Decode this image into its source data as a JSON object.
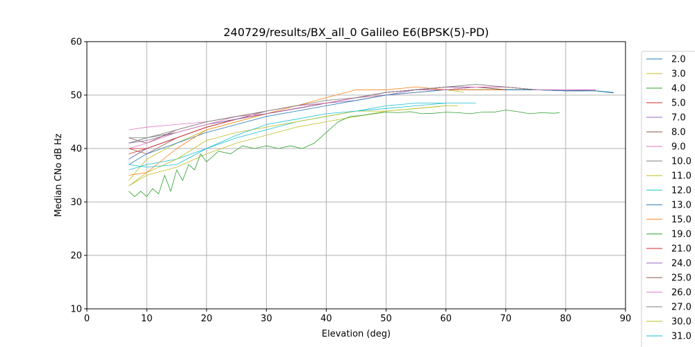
{
  "chart_data": {
    "type": "line",
    "title": "240729/results/BX_all_0 Galileo E6(BPSK(5)-PD)",
    "xlabel": "Elevation (deg)",
    "ylabel": "Median CNo dB Hz",
    "xlim": [
      0,
      90
    ],
    "ylim": [
      10,
      60
    ],
    "xticks": [
      "0",
      "10",
      "20",
      "30",
      "40",
      "50",
      "60",
      "70",
      "80",
      "90"
    ],
    "yticks": [
      "10",
      "20",
      "30",
      "40",
      "50",
      "60"
    ],
    "grid": true,
    "legend_placement": "right",
    "series": [
      {
        "name": "2.0",
        "color": "#1f77b4",
        "x": [
          7,
          10,
          15,
          20,
          25,
          30,
          35,
          40,
          45,
          50,
          55,
          60,
          65,
          70,
          75,
          80,
          85,
          88
        ],
        "y": [
          38,
          40,
          42,
          44,
          45.5,
          46.5,
          47.5,
          48.5,
          49.5,
          50.5,
          51,
          51.5,
          51.5,
          51.5,
          51,
          50.8,
          50.8,
          50.5
        ]
      },
      {
        "name": "3.0",
        "color": "#bcbd22",
        "x": [
          7,
          10,
          15,
          20,
          25,
          30,
          35,
          40,
          45,
          50,
          55,
          60,
          63
        ],
        "y": [
          34,
          38,
          41,
          43.5,
          45,
          46.5,
          47.5,
          48.5,
          49.5,
          50,
          50.5,
          51,
          50.5
        ]
      },
      {
        "name": "4.0",
        "color": "#2ca02c",
        "x": [
          7,
          10,
          15,
          20,
          25,
          30,
          35,
          40,
          45,
          50,
          55,
          60,
          65,
          70,
          75,
          80,
          85,
          88
        ],
        "y": [
          41,
          42,
          43,
          44.5,
          45.5,
          46.5,
          47.5,
          48.5,
          49.5,
          50.5,
          51,
          51,
          51,
          51,
          51,
          50.8,
          50.8,
          50.4
        ]
      },
      {
        "name": "5.0",
        "color": "#d62728",
        "x": [
          7,
          10,
          15,
          20,
          25,
          30,
          35,
          40,
          45,
          50,
          55,
          60,
          65,
          70,
          75
        ],
        "y": [
          39,
          40,
          42,
          44,
          45.5,
          46.5,
          47.5,
          48.5,
          49.5,
          50.5,
          51,
          51.5,
          51.5,
          51.5,
          51
        ]
      },
      {
        "name": "7.0",
        "color": "#9467bd",
        "x": [
          7,
          10,
          15,
          20,
          25,
          30,
          35,
          40,
          45,
          50,
          55,
          60,
          65,
          70,
          75,
          80,
          85
        ],
        "y": [
          38,
          40,
          42,
          44,
          45.5,
          46.5,
          47.5,
          48.5,
          49,
          50,
          51,
          51.5,
          51.5,
          51.5,
          51,
          50.8,
          51
        ]
      },
      {
        "name": "8.0",
        "color": "#8c564b",
        "x": [
          7,
          10,
          15,
          20,
          25,
          30,
          35,
          40,
          45,
          50,
          55,
          60,
          65,
          70,
          75
        ],
        "y": [
          40,
          39,
          42,
          44,
          45.5,
          47,
          48,
          48.5,
          49.5,
          50.5,
          51,
          51,
          51.5,
          51,
          51
        ]
      },
      {
        "name": "9.0",
        "color": "#e377c2",
        "x": [
          7,
          10,
          15,
          20,
          25,
          30,
          35,
          40,
          45,
          50,
          55,
          60,
          65,
          70,
          75,
          80,
          85
        ],
        "y": [
          43.5,
          44,
          44.5,
          45,
          46,
          46.5,
          47.5,
          48.5,
          49.5,
          50,
          50.5,
          51,
          51.5,
          51.5,
          51,
          51,
          51
        ]
      },
      {
        "name": "10.0",
        "color": "#7f7f7f",
        "x": [
          7,
          10,
          15,
          20,
          25,
          30,
          35,
          40,
          45,
          50,
          55,
          60,
          65,
          70,
          75
        ],
        "y": [
          42,
          42,
          43,
          44.5,
          45.5,
          46.5,
          47.5,
          48.5,
          49.5,
          50.5,
          51,
          51.5,
          52,
          51.5,
          51
        ]
      },
      {
        "name": "11.0",
        "color": "#bcbd22",
        "x": [
          7,
          10,
          15,
          20,
          25,
          30,
          35,
          40,
          45,
          50,
          55,
          60
        ],
        "y": [
          33,
          35,
          36.5,
          39,
          41,
          42.5,
          44,
          45,
          46,
          47,
          47.5,
          48
        ]
      },
      {
        "name": "12.0",
        "color": "#17becf",
        "x": [
          7,
          10,
          15,
          20,
          25,
          30,
          35,
          40,
          45,
          50,
          55,
          60
        ],
        "y": [
          36,
          37,
          38,
          40,
          42,
          43.5,
          45,
          46,
          47,
          48,
          48.5,
          48.5
        ]
      },
      {
        "name": "13.0",
        "color": "#1f77b4",
        "x": [
          7,
          10,
          15,
          20,
          25,
          30,
          35,
          40,
          45,
          50,
          55,
          60,
          65,
          70,
          75,
          80,
          85,
          88
        ],
        "y": [
          37,
          39,
          41,
          43,
          44.5,
          46,
          47,
          48,
          49,
          50,
          50.5,
          51,
          51,
          51,
          51,
          50.8,
          50.8,
          50.4
        ]
      },
      {
        "name": "15.0",
        "color": "#ff7f0e",
        "x": [
          7,
          10,
          15,
          20,
          25,
          30,
          35,
          40,
          45,
          50,
          55,
          60,
          65,
          70
        ],
        "y": [
          35,
          35.5,
          40,
          43.5,
          45,
          46.5,
          48,
          49.5,
          51,
          51,
          51.5,
          51,
          51,
          51
        ]
      },
      {
        "name": "19.0",
        "color": "#2ca02c",
        "x": [
          7,
          8,
          9,
          10,
          11,
          12,
          13,
          14,
          15,
          16,
          17,
          18,
          19,
          20,
          22,
          24,
          26,
          28,
          30,
          32,
          34,
          36,
          38,
          40,
          42,
          44,
          46,
          48,
          50,
          52,
          54,
          56,
          58,
          60,
          62,
          64,
          66,
          68,
          70,
          72,
          74,
          76,
          78,
          79
        ],
        "y": [
          32,
          31,
          32,
          31,
          32.5,
          31.5,
          35,
          32,
          36,
          34,
          37,
          36,
          39,
          37.5,
          39.5,
          39,
          40.5,
          40,
          40.5,
          40,
          40.5,
          40,
          41,
          43,
          45,
          46,
          46.2,
          46.5,
          46.8,
          46.7,
          46.9,
          46.5,
          46.6,
          46.8,
          46.7,
          46.5,
          46.8,
          46.8,
          47.2,
          46.9,
          46.5,
          46.7,
          46.6,
          46.7
        ]
      },
      {
        "name": "21.0",
        "color": "#d62728",
        "x": [
          7,
          10,
          15,
          20,
          25,
          30,
          35,
          40,
          45,
          50,
          55,
          60,
          65,
          70,
          75
        ],
        "y": [
          40,
          40,
          42,
          44,
          45.5,
          46.5,
          47.5,
          48.5,
          49.5,
          50.5,
          51,
          51.5,
          51.5,
          51.5,
          51
        ]
      },
      {
        "name": "24.0",
        "color": "#9467bd",
        "x": [
          7,
          10,
          15,
          20,
          25,
          30,
          35,
          40,
          45,
          50,
          55,
          60,
          65,
          70,
          75
        ],
        "y": [
          41,
          41.5,
          43,
          44.5,
          45.5,
          46.5,
          47.5,
          48.5,
          49.5,
          50.5,
          51,
          51.5,
          51.5,
          51.5,
          51
        ]
      },
      {
        "name": "25.0",
        "color": "#8c564b",
        "x": [
          7,
          10,
          15,
          20,
          25,
          30,
          35,
          40,
          45,
          50,
          55,
          60,
          65,
          70
        ],
        "y": [
          42,
          41,
          43.5,
          45,
          46,
          47,
          48,
          48.5,
          49.5,
          50.5,
          51,
          51,
          51.5,
          51
        ]
      },
      {
        "name": "26.0",
        "color": "#e377c2",
        "x": [
          7,
          10,
          15,
          20,
          25,
          30,
          35,
          40,
          45,
          50,
          55,
          60,
          65,
          70,
          75,
          80,
          85
        ],
        "y": [
          40,
          41,
          43,
          44.5,
          46,
          47,
          48,
          48.5,
          49.5,
          50.5,
          51,
          51,
          51.5,
          51.5,
          51,
          51,
          51
        ]
      },
      {
        "name": "27.0",
        "color": "#7f7f7f",
        "x": [
          7,
          10,
          15,
          20,
          25,
          30,
          35,
          40,
          45,
          50,
          55,
          60,
          65,
          70,
          75
        ],
        "y": [
          41,
          42,
          43.5,
          45,
          46,
          47,
          48,
          49,
          49.5,
          50.5,
          51,
          51.5,
          52,
          51.5,
          51
        ]
      },
      {
        "name": "30.0",
        "color": "#bcbd22",
        "x": [
          7,
          10,
          15,
          20,
          25,
          30,
          35,
          40,
          45,
          50,
          55,
          60,
          62
        ],
        "y": [
          33,
          35.5,
          38,
          41.5,
          43,
          44,
          45,
          46,
          47,
          47,
          47.5,
          48,
          48
        ]
      },
      {
        "name": "31.0",
        "color": "#17becf",
        "x": [
          7,
          10,
          15,
          20,
          25,
          30,
          35,
          40,
          45,
          50,
          55,
          60,
          65
        ],
        "y": [
          37,
          36.5,
          37,
          40,
          42.5,
          44.5,
          45.5,
          46.5,
          47,
          47.5,
          48,
          48.5,
          48.5
        ]
      }
    ]
  }
}
